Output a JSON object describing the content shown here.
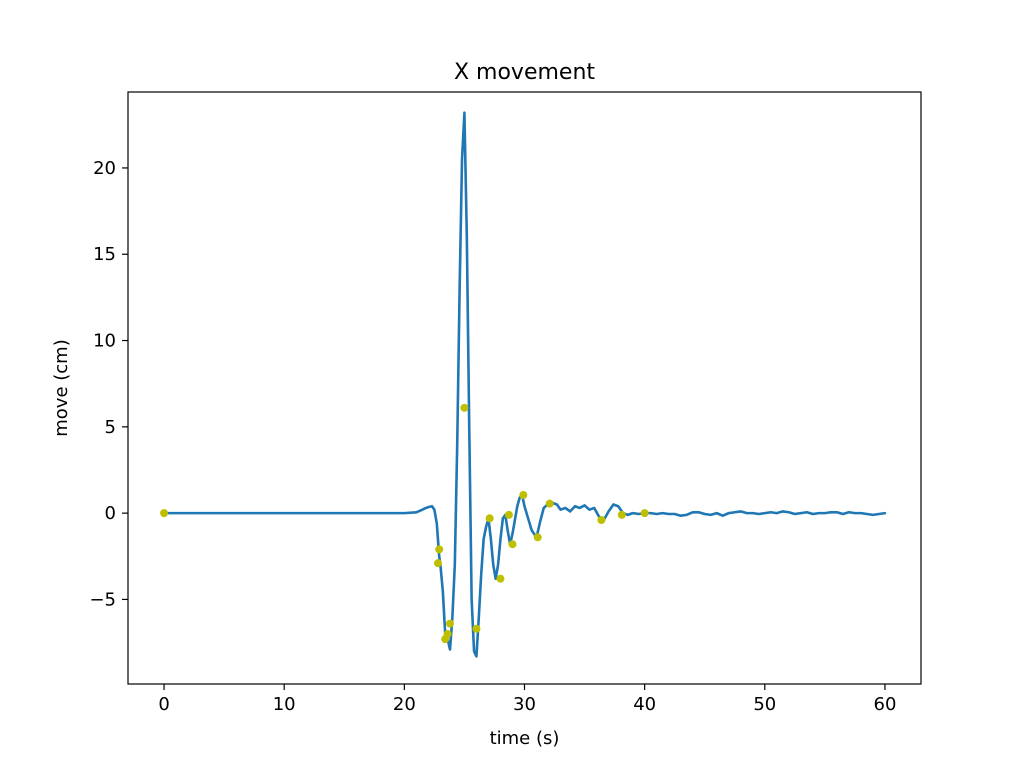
{
  "chart_data": {
    "type": "line",
    "title": "X movement",
    "xlabel": "time (s)",
    "ylabel": "move (cm)",
    "xlim": [
      -3,
      63
    ],
    "ylim": [
      -9.9,
      24.4
    ],
    "xticks": [
      0,
      10,
      20,
      30,
      40,
      50,
      60
    ],
    "yticks": [
      -5,
      0,
      5,
      10,
      15,
      20
    ],
    "xtick_labels": [
      "0",
      "10",
      "20",
      "30",
      "40",
      "50",
      "60"
    ],
    "ytick_labels": [
      "−5",
      "0",
      "5",
      "10",
      "15",
      "20"
    ],
    "grid": false,
    "series": [
      {
        "kind": "line",
        "color": "#1f77b4",
        "x": [
          0,
          10,
          20,
          21,
          21.5,
          21.8,
          22,
          22.3,
          22.5,
          22.7,
          22.9,
          23.0,
          23.2,
          23.4,
          23.6,
          23.8,
          24.0,
          24.2,
          24.4,
          24.6,
          24.8,
          25.0,
          25.2,
          25.4,
          25.6,
          25.8,
          26.0,
          26.2,
          26.4,
          26.6,
          26.8,
          27.0,
          27.2,
          27.4,
          27.6,
          27.8,
          28.0,
          28.2,
          28.4,
          28.6,
          28.8,
          29.0,
          29.2,
          29.4,
          29.6,
          29.8,
          30.0,
          30.3,
          30.6,
          31.0,
          31.3,
          31.6,
          32.0,
          32.3,
          32.7,
          33.0,
          33.4,
          33.8,
          34.2,
          34.6,
          35.0,
          35.4,
          35.8,
          36.2,
          36.6,
          37.0,
          37.4,
          37.8,
          38.2,
          38.6,
          39.0,
          39.5,
          40.0,
          40.5,
          41.0,
          41.5,
          42.0,
          42.5,
          43.0,
          43.5,
          44.0,
          44.5,
          45.0,
          45.5,
          46.0,
          46.5,
          47.0,
          47.5,
          48.0,
          48.5,
          49.0,
          49.5,
          50.0,
          50.5,
          51.0,
          51.5,
          52.0,
          52.5,
          53.0,
          53.5,
          54.0,
          54.5,
          55.0,
          55.5,
          56.0,
          56.5,
          57.0,
          57.5,
          58.0,
          58.5,
          59.0,
          59.5,
          60.0
        ],
        "y": [
          0,
          0,
          0,
          0.05,
          0.2,
          0.3,
          0.35,
          0.4,
          0.2,
          -0.6,
          -2.5,
          -3.0,
          -4.5,
          -7.0,
          -7.3,
          -7.9,
          -6.0,
          -3.0,
          4.0,
          13.0,
          20.5,
          23.2,
          16.0,
          5.0,
          -5.0,
          -8.0,
          -8.3,
          -6.0,
          -3.5,
          -1.5,
          -0.8,
          -0.3,
          -1.5,
          -3.0,
          -3.8,
          -3.0,
          -1.5,
          -0.3,
          -0.1,
          -1.0,
          -1.8,
          -1.2,
          -0.4,
          0.4,
          0.9,
          1.05,
          0.4,
          -0.3,
          -1.0,
          -1.4,
          -0.5,
          0.3,
          0.55,
          0.6,
          0.5,
          0.2,
          0.3,
          0.1,
          0.4,
          0.3,
          0.45,
          0.2,
          0.3,
          -0.2,
          -0.4,
          0.1,
          0.5,
          0.4,
          0.0,
          -0.1,
          0.0,
          -0.05,
          0.0,
          0.0,
          -0.05,
          0.0,
          -0.05,
          -0.05,
          -0.15,
          -0.1,
          0.05,
          0.05,
          -0.05,
          -0.1,
          0.0,
          -0.15,
          0.0,
          0.05,
          0.1,
          0.0,
          0.0,
          -0.05,
          0.0,
          0.05,
          0.0,
          0.1,
          0.05,
          -0.05,
          0.0,
          0.05,
          -0.05,
          0.0,
          0.0,
          0.05,
          0.05,
          -0.05,
          0.05,
          0.0,
          0.0,
          -0.05,
          -0.1,
          -0.05,
          0.0
        ]
      },
      {
        "kind": "scatter",
        "color": "#bfbf00",
        "x": [
          0,
          22.8,
          22.9,
          23.4,
          23.6,
          23.8,
          25.0,
          26.0,
          27.1,
          28.0,
          28.7,
          29.0,
          29.9,
          31.1,
          32.1,
          36.4,
          38.1,
          40.0
        ],
        "y": [
          0,
          -2.9,
          -2.1,
          -7.3,
          -7.0,
          -6.4,
          6.1,
          -6.7,
          -0.3,
          -3.8,
          -0.1,
          -1.8,
          1.05,
          -1.4,
          0.55,
          -0.4,
          -0.1,
          0.0
        ]
      }
    ]
  }
}
